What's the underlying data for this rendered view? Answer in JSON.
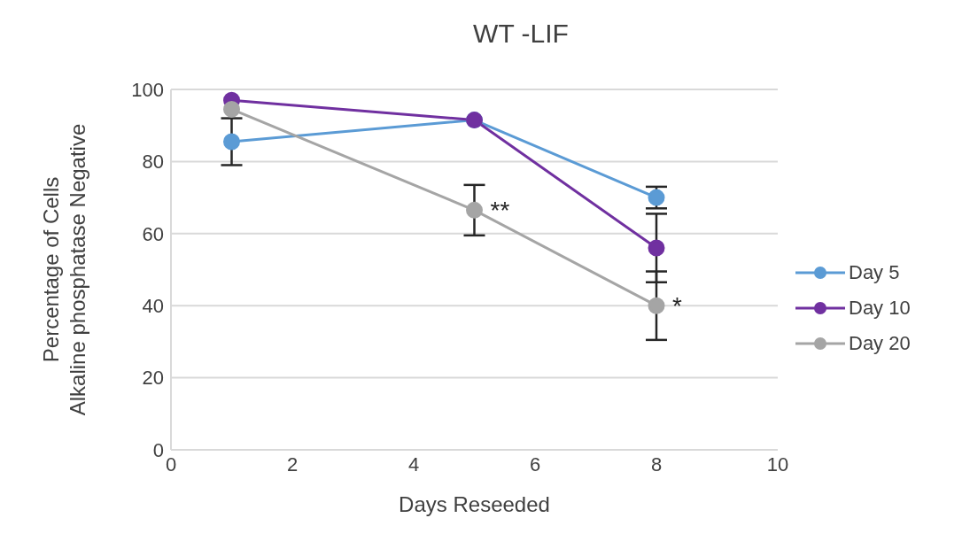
{
  "chart_data": {
    "type": "line",
    "title": "WT -LIF",
    "xlabel": "Days Reseeded",
    "ylabel": "Percentage of Cells\nAlkaline phosphatase Negative",
    "x": [
      1,
      5,
      8
    ],
    "series": [
      {
        "name": "Day 5",
        "color": "#5b9bd5",
        "values": [
          85.5,
          91.5,
          70
        ],
        "errors": [
          6.5,
          null,
          3
        ]
      },
      {
        "name": "Day 10",
        "color": "#7030a0",
        "values": [
          97,
          91.5,
          56
        ],
        "errors": [
          null,
          null,
          9.5
        ]
      },
      {
        "name": "Day 20",
        "color": "#a5a5a5",
        "values": [
          94.5,
          66.5,
          40
        ],
        "errors": [
          null,
          7,
          9.5
        ]
      }
    ],
    "annotations": [
      {
        "text": "**",
        "x": 5,
        "y": 66.5
      },
      {
        "text": "*",
        "x": 8,
        "y": 40
      }
    ],
    "xlim": [
      0,
      10
    ],
    "xticks": [
      0,
      2,
      4,
      6,
      8,
      10
    ],
    "ylim": [
      0,
      100
    ],
    "yticks": [
      0,
      20,
      40,
      60,
      80,
      100
    ],
    "grid": "y",
    "legend": "right",
    "marker": "circle",
    "line_style": "solid"
  }
}
